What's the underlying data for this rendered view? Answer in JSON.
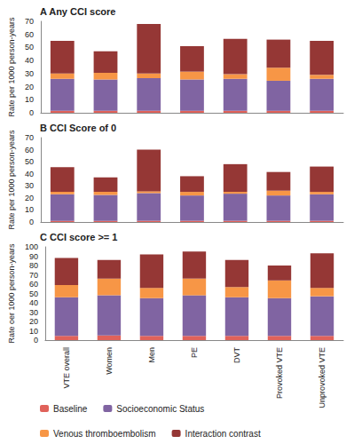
{
  "chart_data": [
    {
      "type": "bar",
      "title": "A Any CCI score",
      "y_label": "Rate per 1000 person-years",
      "categories": [
        "VTE overall",
        "Women",
        "Men",
        "PE",
        "DVT",
        "Provoked VTE",
        "Unprovoked VTE"
      ],
      "stacked": true,
      "grid": false,
      "tick_labels": "y",
      "ylim": [
        0,
        70
      ],
      "yticks": [
        0,
        10,
        20,
        30,
        40,
        50,
        60,
        70
      ],
      "series": [
        {
          "name": "Baseline",
          "color": "#e0625a",
          "values": [
            1.5,
            1.5,
            1.5,
            1.5,
            1.5,
            1.5,
            1.5
          ]
        },
        {
          "name": "Socioeconomic Status",
          "color": "#8064a2",
          "values": [
            24.5,
            24,
            25,
            24,
            24.5,
            23,
            24.5
          ]
        },
        {
          "name": "Venous thromboembolism",
          "color": "#f79646",
          "values": [
            4,
            5,
            3.5,
            6,
            3.5,
            10,
            3
          ]
        },
        {
          "name": "Interaction contrast",
          "color": "#953735",
          "values": [
            25,
            16.5,
            38,
            19.5,
            27,
            21.5,
            26
          ]
        }
      ]
    },
    {
      "type": "bar",
      "title": "B CCI Score of 0",
      "y_label": "Rate per 1000 person-years",
      "categories": [
        "VTE overall",
        "Women",
        "Men",
        "PE",
        "DVT",
        "Provoked VTE",
        "Unprovoked VTE"
      ],
      "stacked": true,
      "grid": false,
      "tick_labels": "y",
      "ylim": [
        0,
        70
      ],
      "yticks": [
        0,
        10,
        20,
        30,
        40,
        50,
        60,
        70
      ],
      "series": [
        {
          "name": "Baseline",
          "color": "#e0625a",
          "values": [
            1,
            1,
            1,
            1,
            1,
            1,
            1
          ]
        },
        {
          "name": "Socioeconomic Status",
          "color": "#8064a2",
          "values": [
            22,
            21.5,
            23,
            21,
            22.5,
            21,
            22
          ]
        },
        {
          "name": "Venous thromboembolism",
          "color": "#f79646",
          "values": [
            2,
            2.5,
            1.5,
            3,
            1.5,
            4,
            2
          ]
        },
        {
          "name": "Interaction contrast",
          "color": "#953735",
          "values": [
            20.5,
            12,
            34.5,
            13,
            23,
            15.5,
            21
          ]
        }
      ]
    },
    {
      "type": "bar",
      "title": "C CCI score >= 1",
      "y_label": "Rate oer 1000 person-years",
      "categories": [
        "VTE overall",
        "Women",
        "Men",
        "PE",
        "DVT",
        "Provoked VTE",
        "Unprovoked VTE"
      ],
      "stacked": true,
      "grid": false,
      "legend": "bottom",
      "ylim": [
        0,
        100
      ],
      "yticks": [
        0,
        10,
        20,
        30,
        40,
        50,
        60,
        70,
        80,
        90,
        100
      ],
      "series": [
        {
          "name": "Baseline",
          "color": "#e0625a",
          "values": [
            4.5,
            5,
            4.5,
            4.5,
            4.5,
            4.5,
            4.5
          ]
        },
        {
          "name": "Socioeconomic Status",
          "color": "#8064a2",
          "values": [
            41.5,
            43,
            40.5,
            43.5,
            41.5,
            40.5,
            42.5
          ]
        },
        {
          "name": "Venous thromboembolism",
          "color": "#f79646",
          "values": [
            13,
            18,
            11,
            18,
            11,
            19,
            9
          ]
        },
        {
          "name": "Interaction contrast",
          "color": "#953735",
          "values": [
            29,
            20,
            36,
            29,
            29,
            16,
            37
          ]
        }
      ]
    }
  ]
}
